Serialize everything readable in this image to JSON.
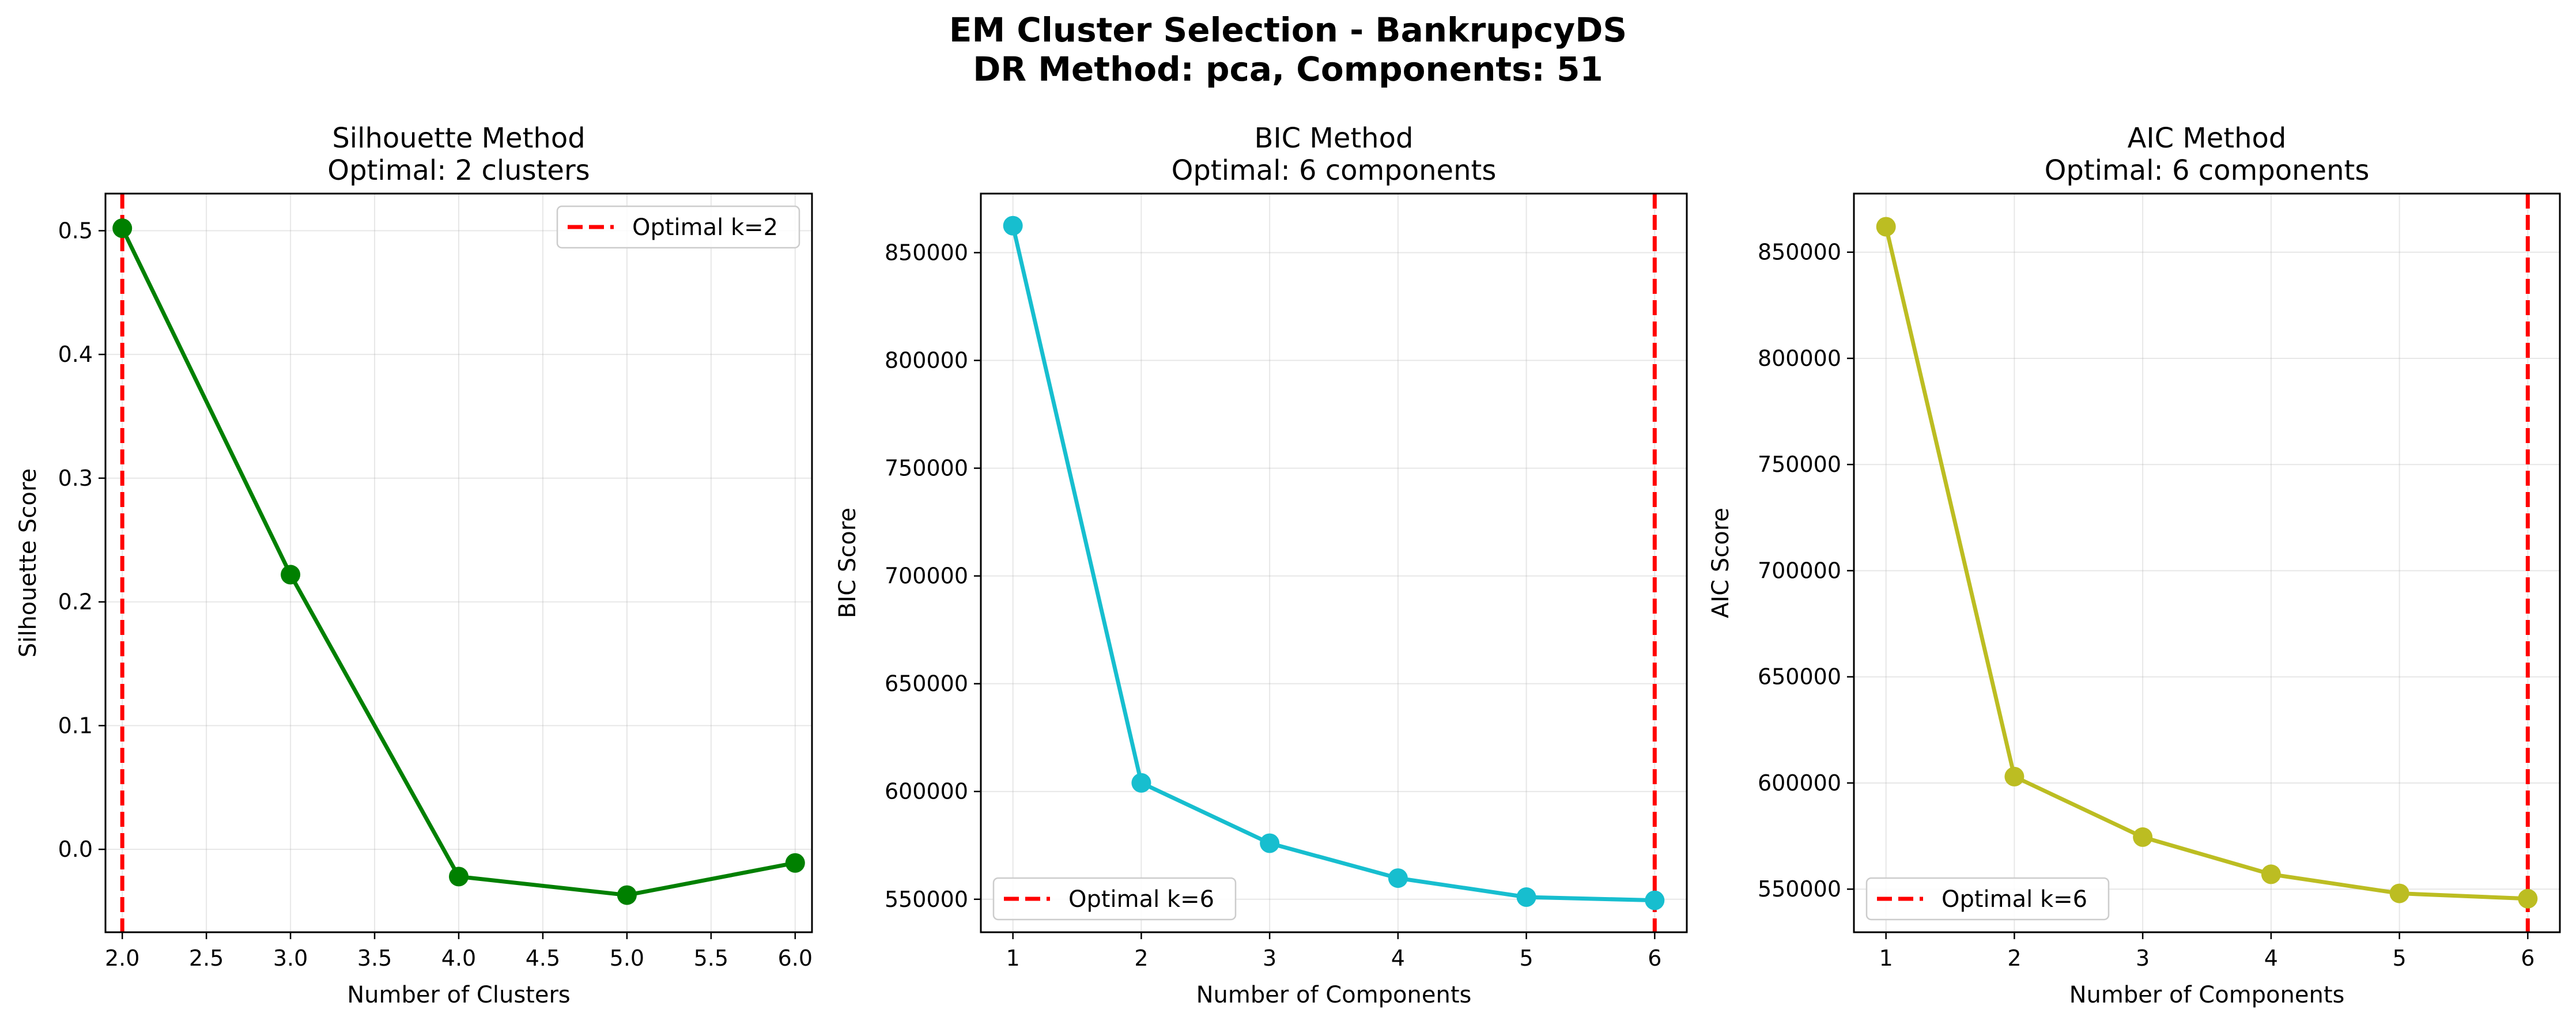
{
  "figure": {
    "title_line1": "EM Cluster Selection - BankrupcyDS",
    "title_line2": "DR Method: pca, Components: 51"
  },
  "chart_data": [
    {
      "type": "line",
      "title": "Silhouette Method",
      "subtitle": "Optimal: 2 clusters",
      "xlabel": "Number of Clusters",
      "ylabel": "Silhouette Score",
      "x": [
        2,
        3,
        4,
        5,
        6
      ],
      "y": [
        0.502,
        0.222,
        -0.022,
        -0.037,
        -0.011
      ],
      "xlim": [
        1.9,
        6.1
      ],
      "ylim": [
        -0.067,
        0.53
      ],
      "xticks": [
        2.0,
        2.5,
        3.0,
        3.5,
        4.0,
        4.5,
        5.0,
        5.5,
        6.0
      ],
      "xtick_labels": [
        "2.0",
        "2.5",
        "3.0",
        "3.5",
        "4.0",
        "4.5",
        "5.0",
        "5.5",
        "6.0"
      ],
      "yticks": [
        0.0,
        0.1,
        0.2,
        0.3,
        0.4,
        0.5
      ],
      "ytick_labels": [
        "0.0",
        "0.1",
        "0.2",
        "0.3",
        "0.4",
        "0.5"
      ],
      "line_color": "#008000",
      "optimal_x": 2,
      "optimal_label": "Optimal k=2",
      "optimal_color": "#ff0000",
      "legend_position": "upper-right",
      "grid": true
    },
    {
      "type": "line",
      "title": "BIC Method",
      "subtitle": "Optimal: 6 components",
      "xlabel": "Number of Components",
      "ylabel": "BIC Score",
      "x": [
        1,
        2,
        3,
        4,
        5,
        6
      ],
      "y": [
        862500,
        604000,
        576000,
        559800,
        551000,
        549500
      ],
      "xlim": [
        0.75,
        6.25
      ],
      "ylim": [
        534700,
        877400
      ],
      "xticks": [
        1,
        2,
        3,
        4,
        5,
        6
      ],
      "xtick_labels": [
        "1",
        "2",
        "3",
        "4",
        "5",
        "6"
      ],
      "yticks": [
        550000,
        600000,
        650000,
        700000,
        750000,
        800000,
        850000
      ],
      "ytick_labels": [
        "550000",
        "600000",
        "650000",
        "700000",
        "750000",
        "800000",
        "850000"
      ],
      "line_color": "#17becf",
      "optimal_x": 6,
      "optimal_label": "Optimal k=6",
      "optimal_color": "#ff0000",
      "legend_position": "lower-left",
      "grid": true
    },
    {
      "type": "line",
      "title": "AIC Method",
      "subtitle": "Optimal: 6 components",
      "xlabel": "Number of Components",
      "ylabel": "AIC Score",
      "x": [
        1,
        2,
        3,
        4,
        5,
        6
      ],
      "y": [
        862000,
        603000,
        574500,
        557000,
        548000,
        545500
      ],
      "xlim": [
        0.75,
        6.25
      ],
      "ylim": [
        529700,
        877600
      ],
      "xticks": [
        1,
        2,
        3,
        4,
        5,
        6
      ],
      "xtick_labels": [
        "1",
        "2",
        "3",
        "4",
        "5",
        "6"
      ],
      "yticks": [
        550000,
        600000,
        650000,
        700000,
        750000,
        800000,
        850000
      ],
      "ytick_labels": [
        "550000",
        "600000",
        "650000",
        "700000",
        "750000",
        "800000",
        "850000"
      ],
      "line_color": "#bcbd22",
      "optimal_x": 6,
      "optimal_label": "Optimal k=6",
      "optimal_color": "#ff0000",
      "legend_position": "lower-left",
      "grid": true
    }
  ]
}
